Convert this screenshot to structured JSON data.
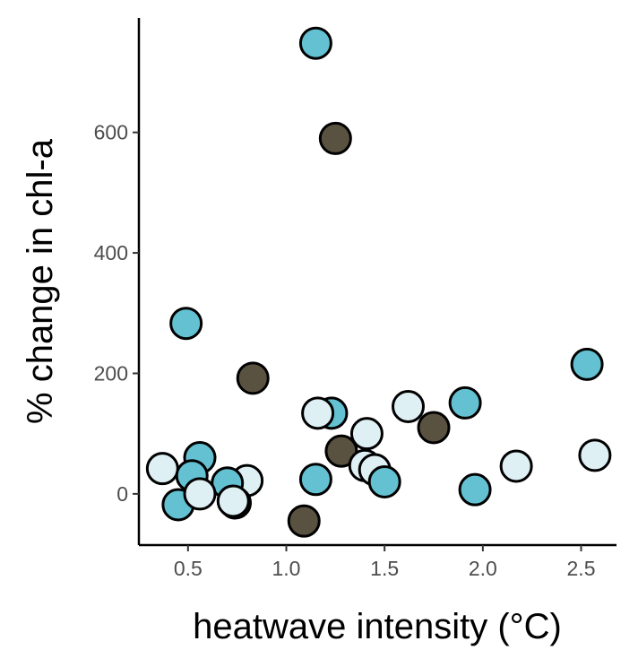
{
  "chart_data": {
    "type": "scatter",
    "title": "",
    "xlabel": "heatwave intensity (°C)",
    "ylabel": "% change in chl-a",
    "xlim": [
      0.25,
      2.68
    ],
    "ylim": [
      -85,
      790
    ],
    "x_ticks": [
      0.5,
      1.0,
      1.5,
      2.0,
      2.5
    ],
    "x_tick_labels": [
      "0.5",
      "1.0",
      "1.5",
      "2.0",
      "2.5"
    ],
    "y_ticks": [
      0,
      200,
      400,
      600
    ],
    "y_tick_labels": [
      "0",
      "200",
      "400",
      "600"
    ],
    "grid": false,
    "legend": "none",
    "colors": {
      "mid": "#63c1d2",
      "light": "#dff0f5",
      "dark": "#5a5240"
    },
    "points": [
      {
        "x": 1.15,
        "y": 748,
        "color": "mid"
      },
      {
        "x": 1.25,
        "y": 590,
        "color": "dark"
      },
      {
        "x": 0.49,
        "y": 283,
        "color": "mid"
      },
      {
        "x": 0.83,
        "y": 192,
        "color": "dark"
      },
      {
        "x": 2.53,
        "y": 215,
        "color": "mid"
      },
      {
        "x": 1.91,
        "y": 151,
        "color": "mid"
      },
      {
        "x": 1.62,
        "y": 145,
        "color": "light"
      },
      {
        "x": 1.23,
        "y": 134,
        "color": "mid"
      },
      {
        "x": 1.16,
        "y": 134,
        "color": "light"
      },
      {
        "x": 1.75,
        "y": 110,
        "color": "dark"
      },
      {
        "x": 1.41,
        "y": 100,
        "color": "light"
      },
      {
        "x": 1.28,
        "y": 71,
        "color": "dark"
      },
      {
        "x": 2.57,
        "y": 64,
        "color": "light"
      },
      {
        "x": 0.56,
        "y": 60,
        "color": "mid"
      },
      {
        "x": 2.17,
        "y": 46,
        "color": "light"
      },
      {
        "x": 1.4,
        "y": 47,
        "color": "light"
      },
      {
        "x": 1.45,
        "y": 40,
        "color": "light"
      },
      {
        "x": 0.37,
        "y": 42,
        "color": "light"
      },
      {
        "x": 0.52,
        "y": 30,
        "color": "mid"
      },
      {
        "x": 1.15,
        "y": 24,
        "color": "mid"
      },
      {
        "x": 1.5,
        "y": 20,
        "color": "mid"
      },
      {
        "x": 0.8,
        "y": 22,
        "color": "light"
      },
      {
        "x": 0.7,
        "y": 18,
        "color": "mid"
      },
      {
        "x": 1.96,
        "y": 7,
        "color": "mid"
      },
      {
        "x": 0.74,
        "y": -15,
        "color": "mid"
      },
      {
        "x": 0.45,
        "y": -18,
        "color": "mid"
      },
      {
        "x": 0.56,
        "y": 0,
        "color": "light"
      },
      {
        "x": 0.73,
        "y": -12,
        "color": "light"
      },
      {
        "x": 1.09,
        "y": -45,
        "color": "dark"
      }
    ]
  }
}
